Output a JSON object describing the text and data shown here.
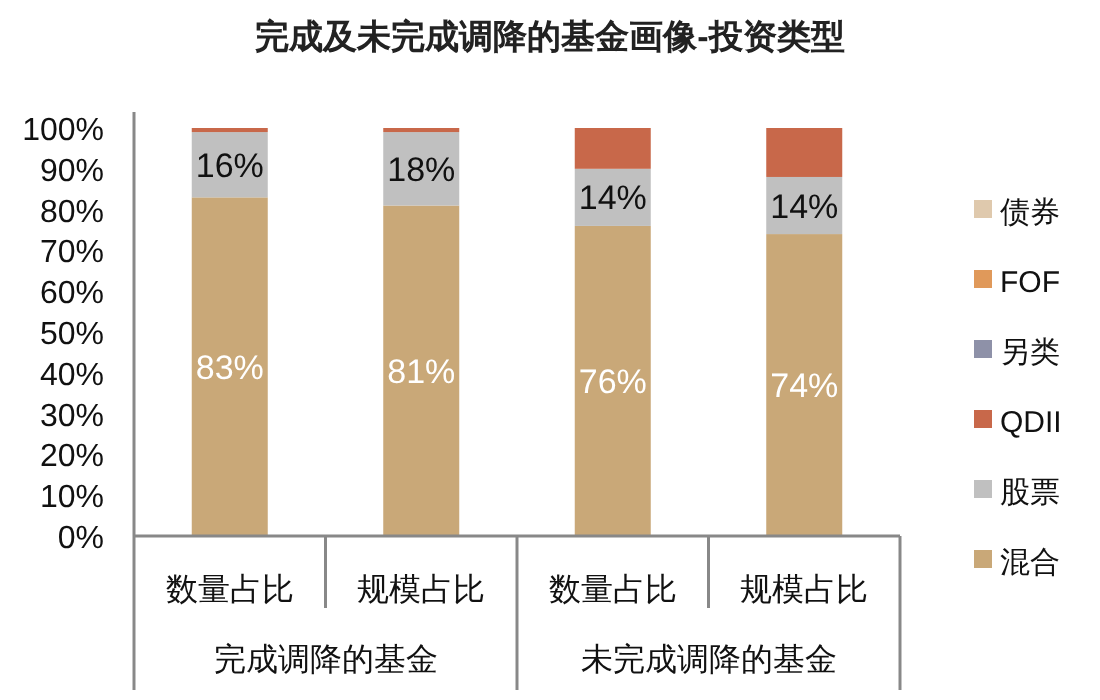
{
  "chart_data": {
    "type": "bar",
    "title": "完成及未完成调降的基金画像-投资类型",
    "stacked": true,
    "categories": [
      "数量占比",
      "规模占比",
      "数量占比",
      "规模占比"
    ],
    "annotations": [
      "完成调降的基金",
      "未完成调降的基金"
    ],
    "series": [
      {
        "name": "混合",
        "color": "#c9a878",
        "values": [
          83,
          81,
          76,
          74
        ],
        "value_labels": [
          "83%",
          "81%",
          "76%",
          "74%"
        ]
      },
      {
        "name": "股票",
        "color": "#c0c0c0",
        "values": [
          16,
          18,
          14,
          14
        ],
        "value_labels": [
          "16%",
          "18%",
          "14%",
          "14%"
        ]
      },
      {
        "name": "QDII",
        "color": "#c8684a",
        "values": [
          1,
          1,
          10,
          12
        ]
      },
      {
        "name": "另类",
        "color": "#8e91a8",
        "values": [
          0,
          0,
          0,
          0
        ]
      },
      {
        "name": "FOF",
        "color": "#e0995a",
        "values": [
          0,
          0,
          0,
          0
        ]
      },
      {
        "name": "债券",
        "color": "#dfc9ad",
        "values": [
          0,
          0,
          0,
          0
        ]
      }
    ],
    "ylim": [
      0,
      100
    ],
    "yticks": [
      {
        "value": 0,
        "label": "0%"
      },
      {
        "value": 10,
        "label": "10%"
      },
      {
        "value": 20,
        "label": "20%"
      },
      {
        "value": 30,
        "label": "30%"
      },
      {
        "value": 40,
        "label": "40%"
      },
      {
        "value": 50,
        "label": "50%"
      },
      {
        "value": 60,
        "label": "60%"
      },
      {
        "value": 70,
        "label": "70%"
      },
      {
        "value": 80,
        "label": "80%"
      },
      {
        "value": 90,
        "label": "90%"
      },
      {
        "value": 100,
        "label": "100%"
      }
    ],
    "grid": false,
    "legend": "right"
  }
}
